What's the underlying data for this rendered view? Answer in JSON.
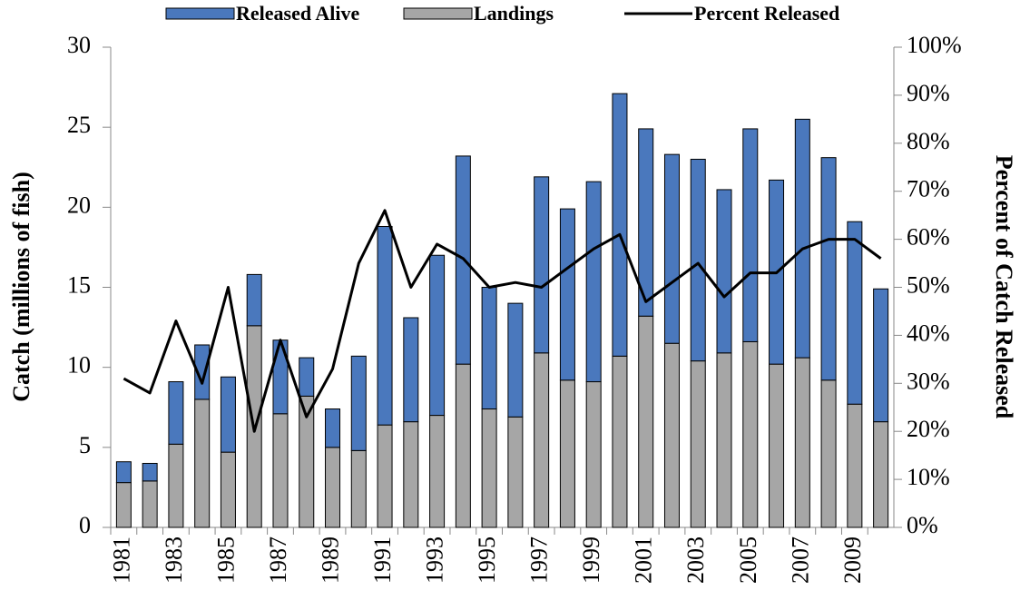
{
  "chart_data": {
    "type": "bar",
    "categories": [
      "1981",
      null,
      "1983",
      null,
      "1985",
      null,
      "1987",
      null,
      "1989",
      null,
      "1991",
      null,
      "1993",
      null,
      "1995",
      null,
      "1997",
      null,
      "1999",
      null,
      "2001",
      null,
      "2003",
      null,
      "2005",
      null,
      "2007",
      null,
      "2009",
      null
    ],
    "series": [
      {
        "name": "Released Alive",
        "color": "#4a78bd",
        "type": "bar",
        "values": [
          1.3,
          1.1,
          3.9,
          3.4,
          4.7,
          3.2,
          4.6,
          2.4,
          2.4,
          5.9,
          12.4,
          6.5,
          10.0,
          13.0,
          7.6,
          7.1,
          11.0,
          10.7,
          12.5,
          16.4,
          11.7,
          11.8,
          12.6,
          10.2,
          13.3,
          11.5,
          14.9,
          13.9,
          11.4,
          8.3
        ]
      },
      {
        "name": "Landings",
        "color": "#a6a6a6",
        "type": "bar",
        "values": [
          2.8,
          2.9,
          5.2,
          8.0,
          4.7,
          12.6,
          7.1,
          8.2,
          5.0,
          4.8,
          6.4,
          6.6,
          7.0,
          10.2,
          7.4,
          6.9,
          10.9,
          9.2,
          9.1,
          10.7,
          13.2,
          11.5,
          10.4,
          10.9,
          11.6,
          10.2,
          10.6,
          9.2,
          7.7,
          6.6
        ]
      },
      {
        "name": "Percent Released",
        "color": "#000000",
        "type": "line",
        "axis": "y2",
        "values": [
          31,
          28,
          43,
          30,
          50,
          20,
          39,
          23,
          33,
          55,
          66,
          50,
          59,
          56,
          50,
          51,
          50,
          54,
          58,
          61,
          47,
          51,
          55,
          48,
          53,
          53,
          58,
          60,
          60,
          56
        ]
      }
    ],
    "ylabel": "Catch (millions of fish)",
    "y2label": "Percent of Catch Released",
    "ylim": [
      0,
      30
    ],
    "yticks": [
      0,
      5,
      10,
      15,
      20,
      25,
      30
    ],
    "y2lim": [
      0,
      100
    ],
    "y2ticks": [
      {
        "value": 0,
        "label": "0%"
      },
      {
        "value": 10,
        "label": "10%"
      },
      {
        "value": 20,
        "label": "20%"
      },
      {
        "value": 30,
        "label": "30%"
      },
      {
        "value": 40,
        "label": "40%"
      },
      {
        "value": 50,
        "label": "50%"
      },
      {
        "value": 60,
        "label": "60%"
      },
      {
        "value": 70,
        "label": "70%"
      },
      {
        "value": 80,
        "label": "80%"
      },
      {
        "value": 90,
        "label": "90%"
      },
      {
        "value": 100,
        "label": "100%"
      }
    ],
    "grid": false,
    "legend": "top"
  }
}
